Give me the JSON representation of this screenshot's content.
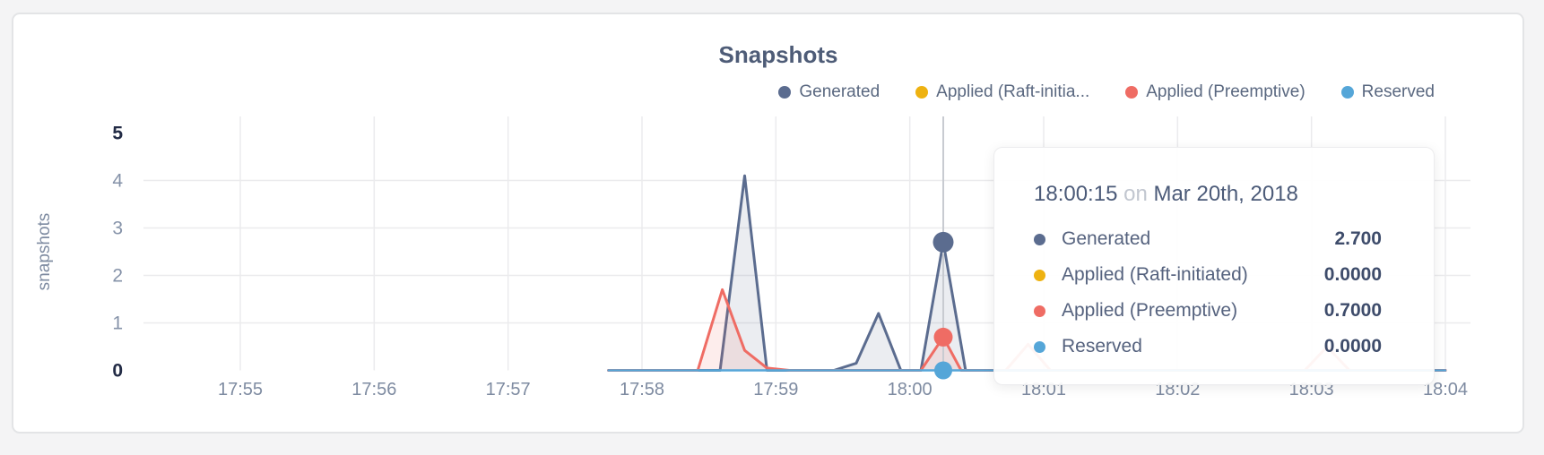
{
  "page": {
    "background": "#f4f4f5"
  },
  "card": {
    "background": "#ffffff",
    "border_color": "#e3e4e6"
  },
  "chart_data": {
    "type": "area",
    "title": "Snapshots",
    "ylabel": "snapshots",
    "xlabel": "",
    "ylim": [
      0,
      5
    ],
    "grid": true,
    "legend_position": "top-right",
    "x_unit_note": "x values are seconds after 17:54:00 on Mar 20th, 2018",
    "x_ticks": [
      {
        "t": 60,
        "label": "17:55"
      },
      {
        "t": 120,
        "label": "17:56"
      },
      {
        "t": 180,
        "label": "17:57"
      },
      {
        "t": 240,
        "label": "17:58"
      },
      {
        "t": 300,
        "label": "17:59"
      },
      {
        "t": 360,
        "label": "18:00"
      },
      {
        "t": 420,
        "label": "18:01"
      },
      {
        "t": 480,
        "label": "18:02"
      },
      {
        "t": 540,
        "label": "18:03"
      },
      {
        "t": 600,
        "label": "18:04"
      }
    ],
    "y_ticks": [
      {
        "v": 5,
        "emphasis": true
      },
      {
        "v": 4,
        "emphasis": false
      },
      {
        "v": 3,
        "emphasis": false
      },
      {
        "v": 2,
        "emphasis": false
      },
      {
        "v": 1,
        "emphasis": false
      },
      {
        "v": 0,
        "emphasis": true
      }
    ],
    "y_gridlines": [
      1,
      2,
      3,
      4
    ],
    "series": [
      {
        "name": "Generated",
        "color": "#5b6c8f",
        "line_width": 3,
        "fill_opacity": 0.12,
        "points": [
          [
            225,
            0
          ],
          [
            275,
            0
          ],
          [
            286,
            4.1
          ],
          [
            296,
            0
          ],
          [
            326,
            0
          ],
          [
            336,
            0.15
          ],
          [
            346,
            1.2
          ],
          [
            356,
            0
          ],
          [
            365,
            0
          ],
          [
            375,
            2.7
          ],
          [
            385,
            0
          ],
          [
            600,
            0
          ]
        ]
      },
      {
        "name": "Applied (Raft-initiated)",
        "color": "#eeb211",
        "line_width": 2,
        "fill_opacity": 0.12,
        "points": [
          [
            225,
            0
          ],
          [
            600,
            0
          ]
        ]
      },
      {
        "name": "Applied (Preemptive)",
        "color": "#ef6c64",
        "line_width": 3,
        "fill_opacity": 0.12,
        "points": [
          [
            225,
            0
          ],
          [
            265,
            0
          ],
          [
            276,
            1.7
          ],
          [
            286,
            0.42
          ],
          [
            296,
            0.05
          ],
          [
            306,
            0
          ],
          [
            365,
            0
          ],
          [
            375,
            0.7
          ],
          [
            383,
            0
          ],
          [
            403,
            0
          ],
          [
            413,
            0.55
          ],
          [
            423,
            0
          ],
          [
            537,
            0
          ],
          [
            547,
            0.5
          ],
          [
            557,
            0
          ],
          [
            600,
            0
          ]
        ]
      },
      {
        "name": "Reserved",
        "color": "#55a6d8",
        "line_width": 2.5,
        "fill_opacity": 0.12,
        "points": [
          [
            225,
            0
          ],
          [
            600,
            0
          ]
        ]
      }
    ],
    "highlight": {
      "t": 375,
      "crosshair_color": "#c8cbd1",
      "dots": [
        {
          "series": "Generated",
          "v": 2.7,
          "r": 11.5
        },
        {
          "series": "Applied (Preemptive)",
          "v": 0.7,
          "r": 10.5
        },
        {
          "series": "Reserved",
          "v": 0,
          "r": 10
        }
      ]
    }
  },
  "legend": {
    "items": [
      {
        "label": "Generated",
        "color": "#5b6c8f"
      },
      {
        "label": "Applied (Raft-initia...",
        "color": "#eeb211"
      },
      {
        "label": "Applied (Preemptive)",
        "color": "#ef6c64"
      },
      {
        "label": "Reserved",
        "color": "#55a6d8"
      }
    ]
  },
  "tooltip": {
    "time": "18:00:15",
    "connector": "on",
    "date": "Mar 20th, 2018",
    "rows": [
      {
        "label": "Generated",
        "value": "2.700",
        "color": "#5b6c8f"
      },
      {
        "label": "Applied (Raft-initiated)",
        "value": "0.0000",
        "color": "#eeb211"
      },
      {
        "label": "Applied (Preemptive)",
        "value": "0.7000",
        "color": "#ef6c64"
      },
      {
        "label": "Reserved",
        "value": "0.0000",
        "color": "#55a6d8"
      }
    ]
  }
}
